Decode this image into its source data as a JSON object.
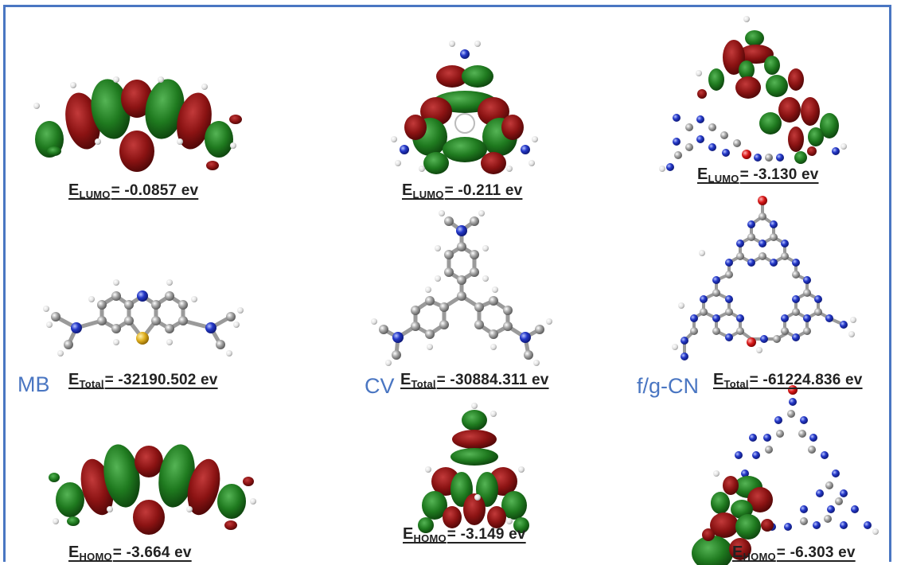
{
  "colors": {
    "frame": "#4a76c2",
    "label": "#4a76c2",
    "orbital_positive": "#8b1313",
    "orbital_negative": "#1f7a1f",
    "carbon": "#8c8c8c",
    "nitrogen": "#2438c8",
    "sulfur": "#e0b020",
    "oxygen": "#d81818",
    "hydrogen": "#e8e8e8"
  },
  "molecules": [
    {
      "label": "MB",
      "lumo": {
        "symbol": "E",
        "sub": "LUMO",
        "text": "= -0.0857 ev"
      },
      "total": {
        "symbol": "E",
        "sub": "Total",
        "text": "= -32190.502 ev"
      },
      "homo": {
        "symbol": "E",
        "sub": "HOMO",
        "text": "= -3.664 ev"
      }
    },
    {
      "label": "CV",
      "lumo": {
        "symbol": "E",
        "sub": "LUMO",
        "text": "= -0.211 ev"
      },
      "total": {
        "symbol": "E",
        "sub": "Total",
        "text": "= -30884.311 ev"
      },
      "homo": {
        "symbol": "E",
        "sub": "HOMO",
        "text": "= -3.149 ev"
      }
    },
    {
      "label": "f/g-CN",
      "lumo": {
        "symbol": "E",
        "sub": "LUMO",
        "text": "= -3.130 ev"
      },
      "total": {
        "symbol": "E",
        "sub": "Total",
        "text": "= -61224.836 ev"
      },
      "homo": {
        "symbol": "E",
        "sub": "HOMO",
        "text": "= -6.303 ev"
      }
    }
  ]
}
